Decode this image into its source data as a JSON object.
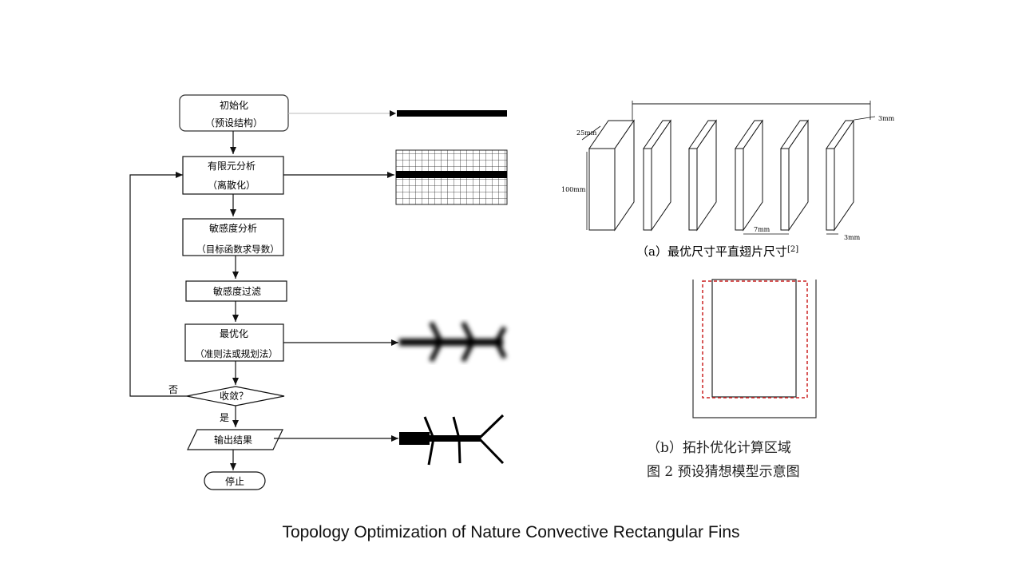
{
  "flowchart": {
    "init": {
      "line1": "初始化",
      "line2": "（预设结构）"
    },
    "fea": {
      "line1": "有限元分析",
      "line2": "（离散化）"
    },
    "sensitivity": {
      "line1": "敏感度分析",
      "line2": "（目标函数求导数）"
    },
    "filter": {
      "label": "敏感度过滤"
    },
    "optimize": {
      "line1": "最优化",
      "line2": "（准则法或规划法）"
    },
    "converge": {
      "label": "收敛？",
      "no": "否",
      "yes": "是"
    },
    "output": {
      "label": "输出结果"
    },
    "stop": {
      "label": "停止"
    }
  },
  "fin_diagram": {
    "dim_thickness": "3mm",
    "dim_depth": "25mm",
    "dim_height": "100mm",
    "dim_gap": "7mm",
    "dim_fin": "3mm",
    "fin_count": 6,
    "caption": "（a）最优尺寸平直翅片尺寸",
    "ref": "[2]"
  },
  "domain_diagram": {
    "caption": "（b）拓扑优化计算区域",
    "accent": "#cc2222"
  },
  "figure_caption": "图 2  预设猜想模型示意图",
  "slide_title": "Topology Optimization of Nature Convective Rectangular Fins"
}
